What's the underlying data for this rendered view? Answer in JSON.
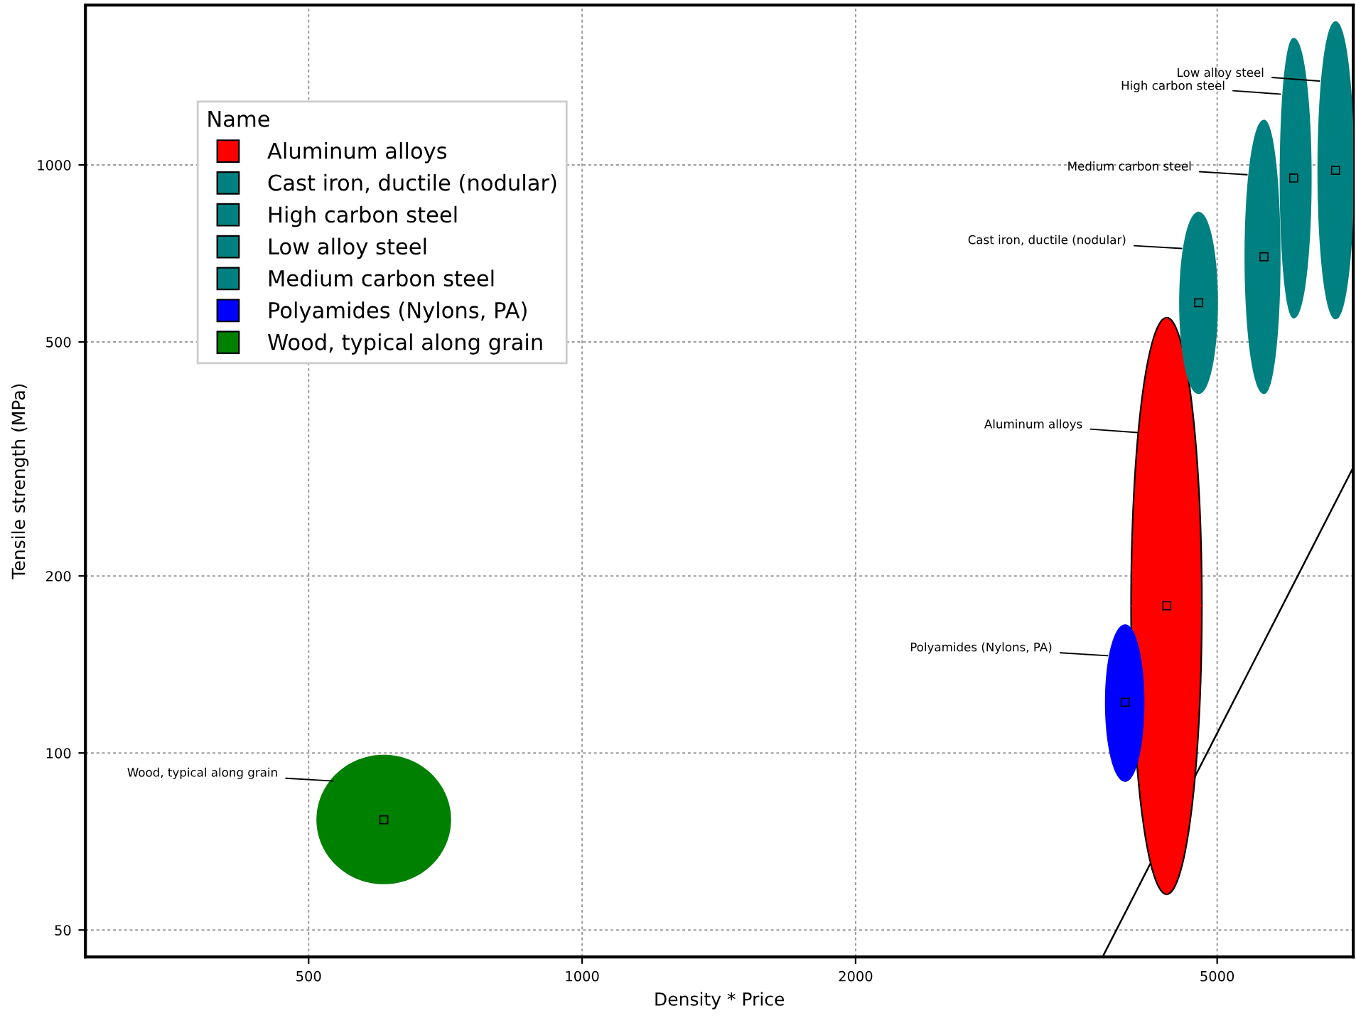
{
  "chart_data": {
    "type": "scatter",
    "xlabel": "Density * Price",
    "ylabel": "Tensile strength (MPa)",
    "log": "xy",
    "grid": true,
    "legend": "top left",
    "legend_title": "Name",
    "xlim": [
      284,
      7060
    ],
    "ylim": [
      45,
      1870
    ],
    "xticks": [
      500,
      1000,
      2000,
      5000
    ],
    "yticks": [
      50,
      100,
      200,
      500,
      1000
    ],
    "series": [
      {
        "name": "Aluminum alloys",
        "color": "#ff0000",
        "x": [
          4400
        ],
        "values": [
          178
        ],
        "xerrors": [
          [
            4020,
            4810
          ]
        ],
        "errors": [
          [
            57.5,
            550
          ]
        ]
      },
      {
        "name": "Cast iron, ductile (nodular)",
        "color": "#008080",
        "x": [
          4770
        ],
        "values": [
          583
        ],
        "xerrors": [
          [
            4550,
            5000
          ]
        ],
        "errors": [
          [
            409,
            830
          ]
        ]
      },
      {
        "name": "High carbon steel",
        "color": "#008080",
        "x": [
          6070
        ],
        "values": [
          950
        ],
        "xerrors": [
          [
            5870,
            6340
          ]
        ],
        "errors": [
          [
            550,
            1640
          ]
        ]
      },
      {
        "name": "Low alloy steel",
        "color": "#008080",
        "x": [
          6750
        ],
        "values": [
          979
        ],
        "xerrors": [
          [
            6460,
            7060
          ]
        ],
        "errors": [
          [
            548,
            1750
          ]
        ]
      },
      {
        "name": "Medium carbon steel",
        "color": "#008080",
        "x": [
          5630
        ],
        "values": [
          698
        ],
        "xerrors": [
          [
            5370,
            5860
          ]
        ],
        "errors": [
          [
            409,
            1190
          ]
        ]
      },
      {
        "name": "Polyamides (Nylons, PA)",
        "color": "#0000ff",
        "x": [
          3960
        ],
        "values": [
          122
        ],
        "xerrors": [
          [
            3770,
            4150
          ]
        ],
        "errors": [
          [
            89.6,
            165
          ]
        ]
      },
      {
        "name": "Wood, typical along grain",
        "color": "#008000",
        "x": [
          605
        ],
        "values": [
          77
        ],
        "xerrors": [
          [
            511,
            716
          ]
        ],
        "errors": [
          [
            60,
            99
          ]
        ]
      },
      {
        "type": "line",
        "color": "#000000",
        "x": [
          3740,
          7060
        ],
        "values": [
          45,
          306
        ]
      }
    ]
  }
}
